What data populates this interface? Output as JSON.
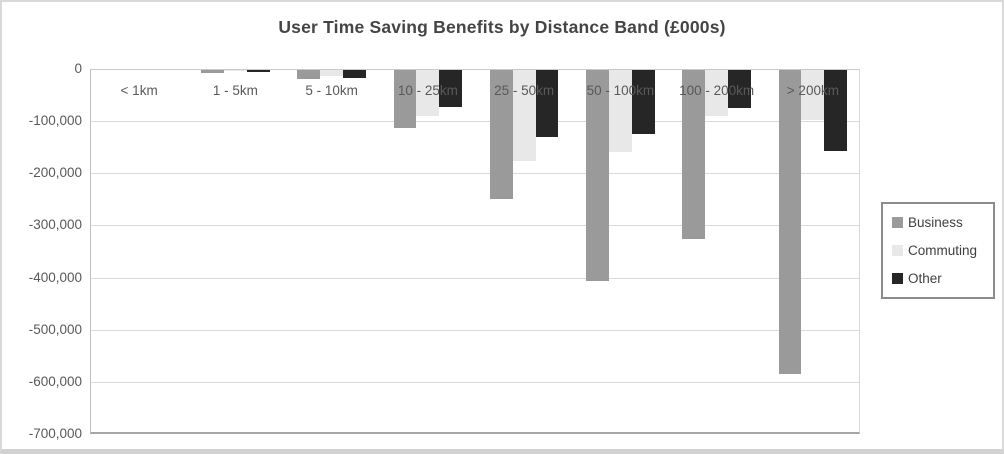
{
  "chart_data": {
    "type": "bar",
    "title": "User Time Saving Benefits by Distance Band (£000s)",
    "categories": [
      "< 1km",
      "1 - 5km",
      "5 - 10km",
      "10 - 25km",
      "25 - 50km",
      "50 - 100km",
      "100 - 200km",
      "> 200km"
    ],
    "series": [
      {
        "name": "Business",
        "color": "#9a9a9a",
        "values": [
          -400,
          -5000,
          -18000,
          -112000,
          -247000,
          -405000,
          -325000,
          -583000
        ]
      },
      {
        "name": "Commuting",
        "color": "#e8e8e8",
        "values": [
          -100,
          -1000,
          -11000,
          -89000,
          -174000,
          -158000,
          -88000,
          -96000
        ]
      },
      {
        "name": "Other",
        "color": "#262626",
        "values": [
          -200,
          -3000,
          -15000,
          -70000,
          -129000,
          -123000,
          -73000,
          -156000
        ]
      }
    ],
    "ylim": [
      -700000,
      0
    ],
    "ytick_interval": 100000,
    "ytick_labels": [
      "0",
      "-100,000",
      "-200,000",
      "-300,000",
      "-400,000",
      "-500,000",
      "-600,000",
      "-700,000"
    ],
    "grid": true,
    "legend_position": "right"
  },
  "colors": {
    "gridline": "#d9d9d9",
    "axis_text": "#595959",
    "title_text": "#454545",
    "plot_left_border": "#bfbfbf",
    "plot_bottom_border": "#a6a6a6",
    "legend_border": "#8c8c8c",
    "frame_border": "#d9d9d9",
    "background": "#ffffff"
  }
}
